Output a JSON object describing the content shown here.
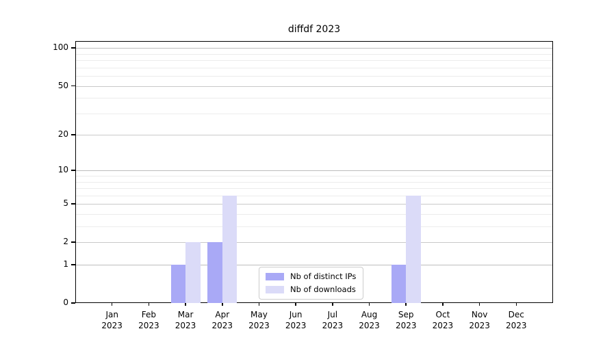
{
  "chart_data": {
    "type": "bar",
    "title": "diffdf 2023",
    "categories": [
      "Jan",
      "Feb",
      "Mar",
      "Apr",
      "May",
      "Jun",
      "Jul",
      "Aug",
      "Sep",
      "Oct",
      "Nov",
      "Dec"
    ],
    "category_year": "2023",
    "series": [
      {
        "name": "Nb of distinct IPs",
        "color": "#a9a9f6",
        "values": [
          0,
          0,
          1,
          2,
          0,
          0,
          0,
          0,
          1,
          0,
          0,
          0
        ]
      },
      {
        "name": "Nb of downloads",
        "color": "#dbdbf8",
        "values": [
          0,
          0,
          2,
          6,
          0,
          0,
          0,
          0,
          6,
          0,
          0,
          0
        ]
      }
    ],
    "yscale": "log10(value+1)",
    "ylim": [
      0,
      114
    ],
    "y_major_ticks": [
      0,
      1,
      2,
      5,
      10,
      20,
      50,
      100
    ],
    "y_minor_gridlines": [
      3,
      4,
      6,
      7,
      8,
      9,
      30,
      40,
      60,
      70,
      80,
      90
    ],
    "grid": "horizontal, major and minor",
    "legend_position": "lower center inside"
  },
  "colors": {
    "decade_grid": "#bdbdbd",
    "major_grid": "#c9c9c9",
    "minor_grid": "#ececec",
    "axis": "#000000",
    "legend_border": "#cccccc"
  }
}
